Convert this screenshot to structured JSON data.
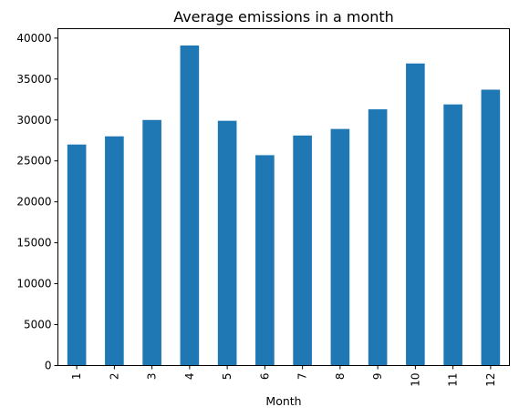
{
  "chart_data": {
    "type": "bar",
    "title": "Average emissions in a month",
    "xlabel": "Month",
    "ylabel": "",
    "categories": [
      "1",
      "2",
      "3",
      "4",
      "5",
      "6",
      "7",
      "8",
      "9",
      "10",
      "11",
      "12"
    ],
    "values": [
      27000,
      28000,
      30000,
      39100,
      29900,
      25700,
      28100,
      28900,
      31300,
      36900,
      31900,
      33700
    ],
    "ylim": [
      0,
      41150
    ],
    "yticks": [
      0,
      5000,
      10000,
      15000,
      20000,
      25000,
      30000,
      35000,
      40000
    ],
    "ytick_labels": [
      "0",
      "5000",
      "10000",
      "15000",
      "20000",
      "25000",
      "30000",
      "35000",
      "40000"
    ],
    "bar_color": "#1f77b4",
    "grid": false,
    "legend": "none"
  }
}
